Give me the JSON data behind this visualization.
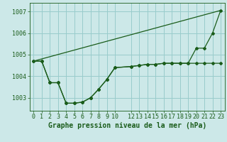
{
  "background_color": "#cce8e8",
  "grid_color": "#99cccc",
  "line_color": "#1a5c1a",
  "xlabel": "Graphe pression niveau de la mer (hPa)",
  "ylim": [
    1002.4,
    1007.4
  ],
  "yticks": [
    1003,
    1004,
    1005,
    1006,
    1007
  ],
  "xlim": [
    -0.5,
    23.5
  ],
  "xticks": [
    0,
    1,
    2,
    3,
    4,
    5,
    6,
    7,
    8,
    9,
    10,
    12,
    13,
    14,
    15,
    16,
    17,
    18,
    19,
    20,
    21,
    22,
    23
  ],
  "series1_x": [
    0,
    1,
    2,
    3,
    4,
    5,
    6,
    7,
    8,
    9,
    10,
    12,
    13,
    14,
    15,
    16,
    17,
    18,
    19,
    20,
    21,
    22,
    23
  ],
  "series1_y": [
    1004.7,
    1004.7,
    1003.7,
    1003.7,
    1002.75,
    1002.75,
    1002.8,
    1003.0,
    1003.4,
    1003.85,
    1004.4,
    1004.45,
    1004.5,
    1004.55,
    1004.55,
    1004.6,
    1004.6,
    1004.6,
    1004.6,
    1004.6,
    1004.6,
    1004.6,
    1004.6
  ],
  "series2_x": [
    0,
    1,
    2,
    3,
    4,
    5,
    6,
    7,
    8,
    9,
    10,
    12,
    13,
    14,
    15,
    16,
    17,
    18,
    19,
    20,
    21,
    22,
    23
  ],
  "series2_y": [
    1004.7,
    1004.7,
    1003.7,
    1003.7,
    1002.75,
    1002.75,
    1002.8,
    1003.0,
    1003.4,
    1003.85,
    1004.4,
    1004.45,
    1004.5,
    1004.55,
    1004.55,
    1004.6,
    1004.6,
    1004.6,
    1004.6,
    1005.3,
    1005.3,
    1006.0,
    1007.05
  ],
  "series3_x": [
    0,
    23
  ],
  "series3_y": [
    1004.7,
    1007.05
  ],
  "xlabel_fontsize": 7,
  "tick_fontsize": 6,
  "ylabel_fontsize": 6
}
